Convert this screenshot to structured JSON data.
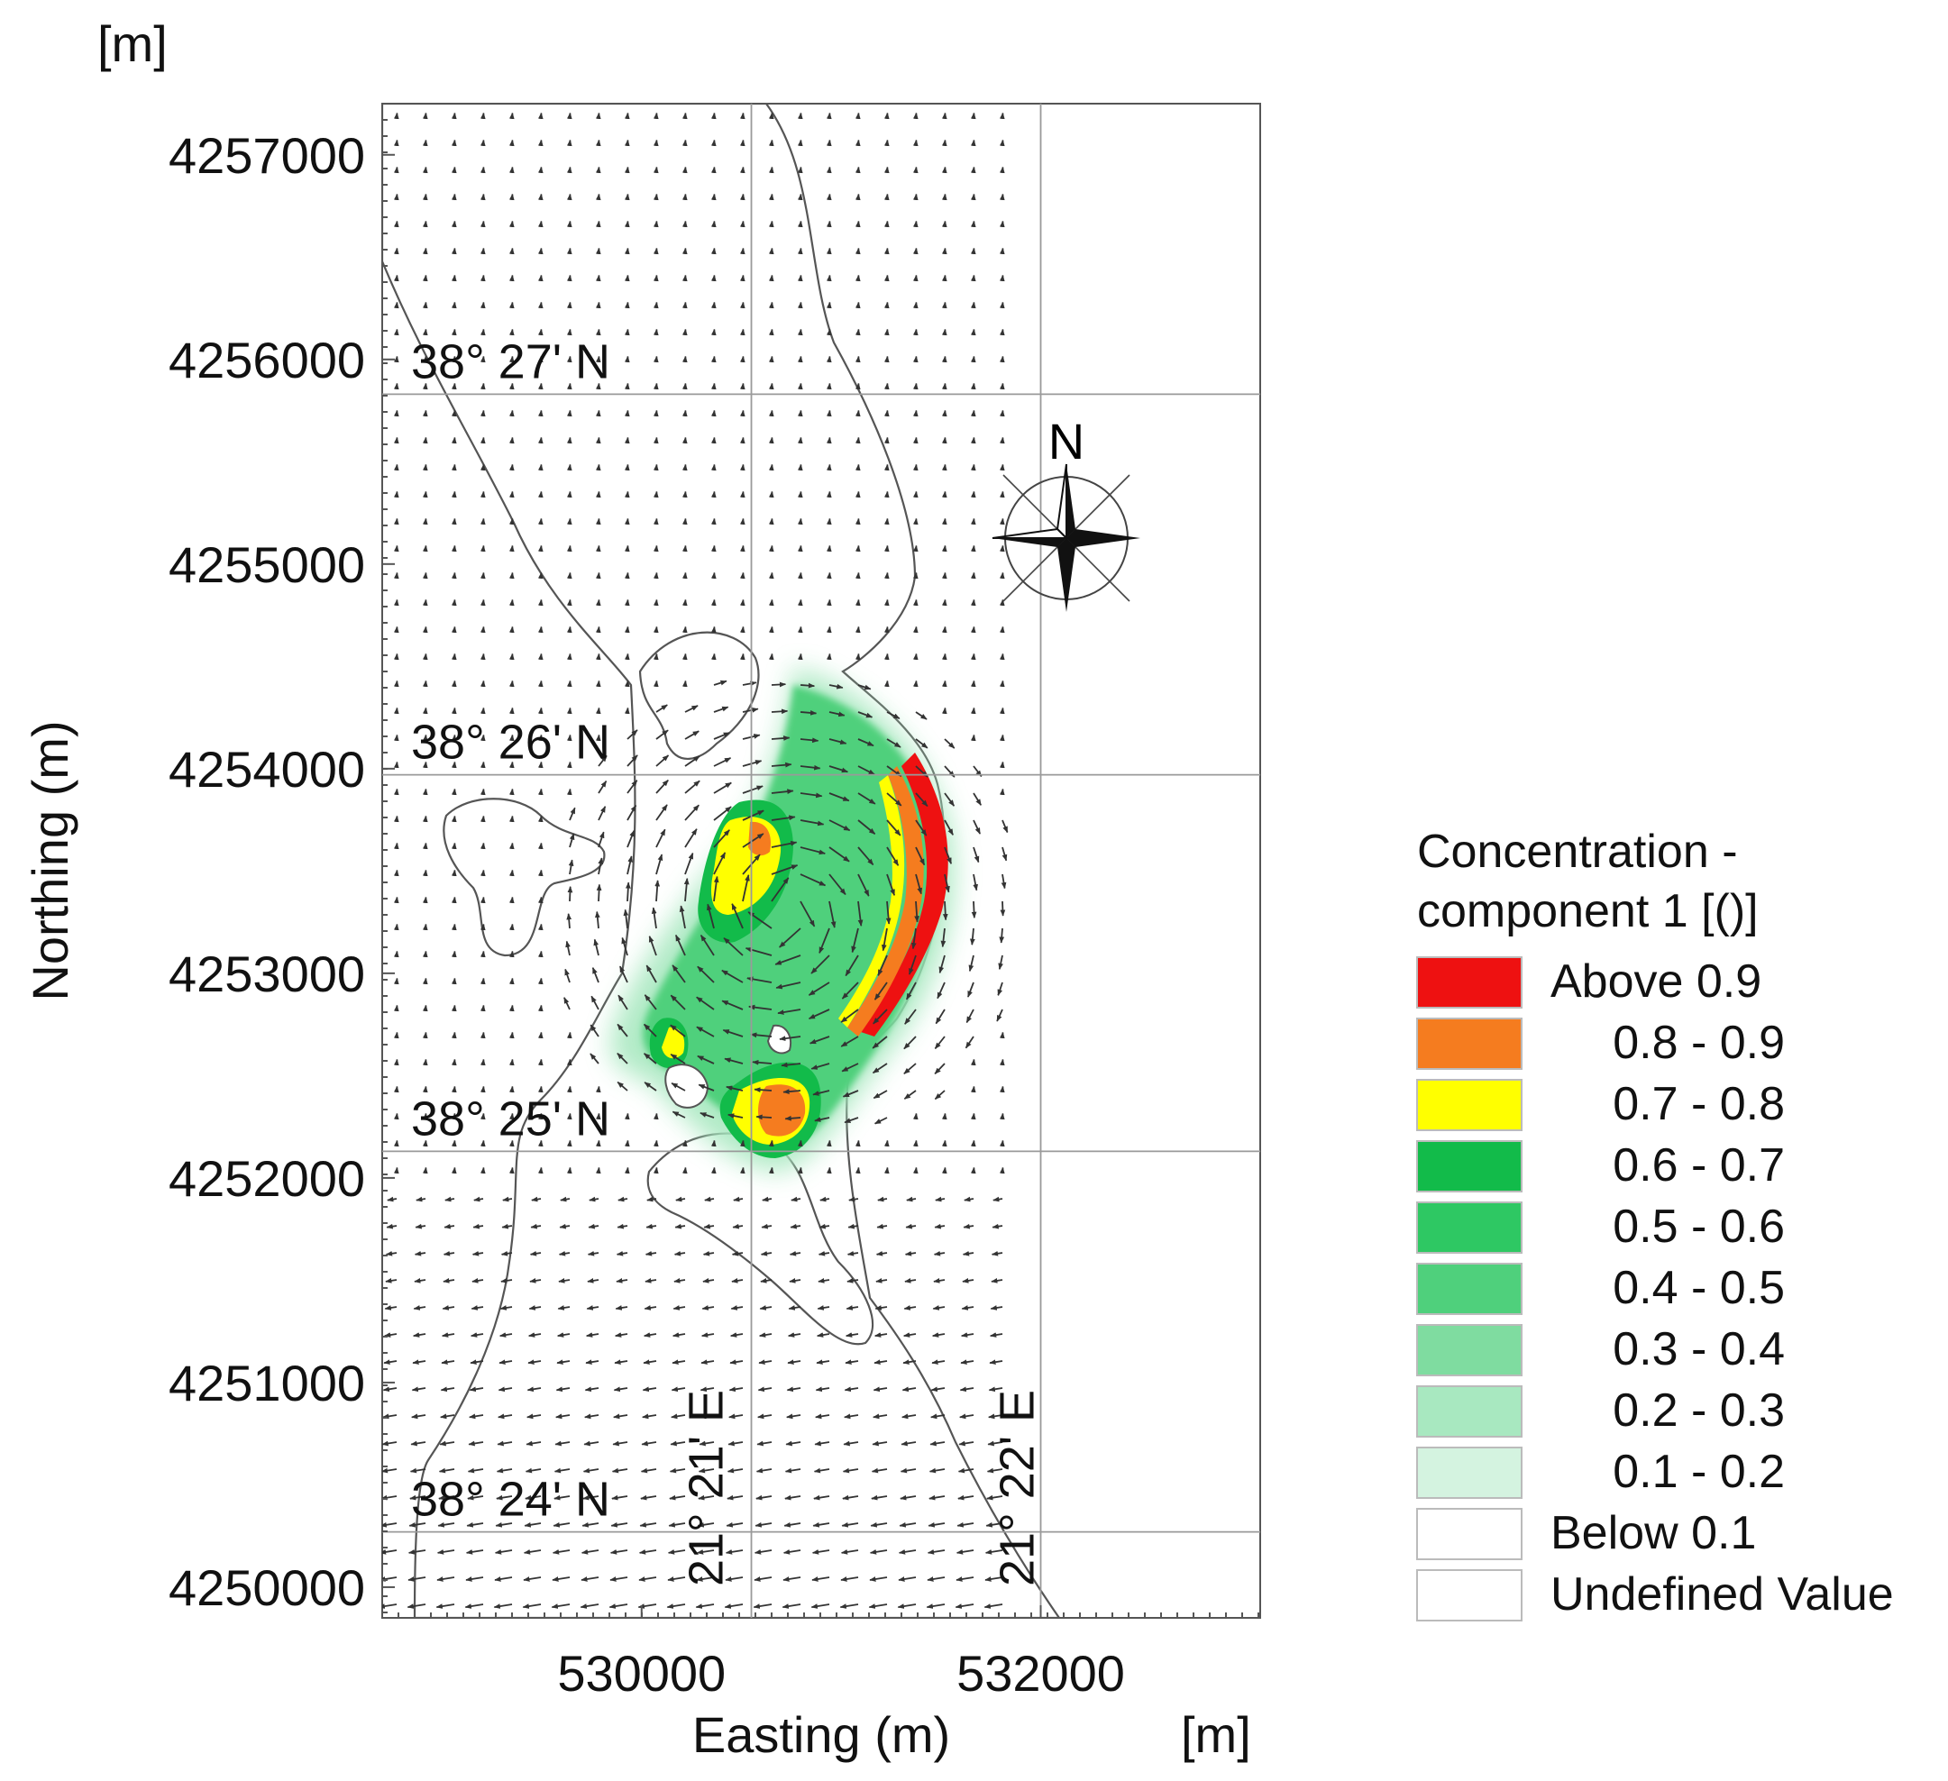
{
  "map": {
    "units": {
      "left_top": "[m]",
      "bottom_right": "[m]"
    },
    "axes": {
      "x": {
        "title": "Easting (m)",
        "range": [
          528700,
          533100
        ],
        "ticks": [
          530000,
          532000
        ]
      },
      "y": {
        "title": "Northing (m)",
        "range": [
          4249850,
          4257250
        ],
        "ticks": [
          4250000,
          4251000,
          4252000,
          4253000,
          4254000,
          4255000,
          4256000,
          4257000
        ]
      }
    },
    "graticule": {
      "parallels": [
        {
          "label": "38° 27' N",
          "northing": 4255830
        },
        {
          "label": "38° 26' N",
          "northing": 4253970
        },
        {
          "label": "38° 25' N",
          "northing": 4252130
        },
        {
          "label": "38° 24' N",
          "northing": 4250270
        }
      ],
      "meridians": [
        {
          "label": "21° 21' E",
          "easting": 530550
        },
        {
          "label": "21° 22' E",
          "easting": 532000
        }
      ]
    },
    "north_arrow": {
      "label": "N",
      "icon": "compass-rose-icon"
    },
    "legend": {
      "title_line1": "Concentration -",
      "title_line2": "component 1 [()]",
      "items": [
        {
          "label": "Above 0.9",
          "color": "#ee1111"
        },
        {
          "label": "0.8 - 0.9",
          "color": "#f57c1f"
        },
        {
          "label": "0.7 - 0.8",
          "color": "#ffff00"
        },
        {
          "label": "0.6 - 0.7",
          "color": "#12bb4a"
        },
        {
          "label": "0.5 - 0.6",
          "color": "#2ec863"
        },
        {
          "label": "0.4 - 0.5",
          "color": "#4fd07c"
        },
        {
          "label": "0.3 - 0.4",
          "color": "#7fdca0"
        },
        {
          "label": "0.2 - 0.3",
          "color": "#a8e8c0"
        },
        {
          "label": "0.1 - 0.2",
          "color": "#d4f3e0"
        },
        {
          "label": "Below 0.1",
          "color": "#ffffff"
        },
        {
          "label": "Undefined Value",
          "color": "#ffffff"
        }
      ]
    }
  }
}
